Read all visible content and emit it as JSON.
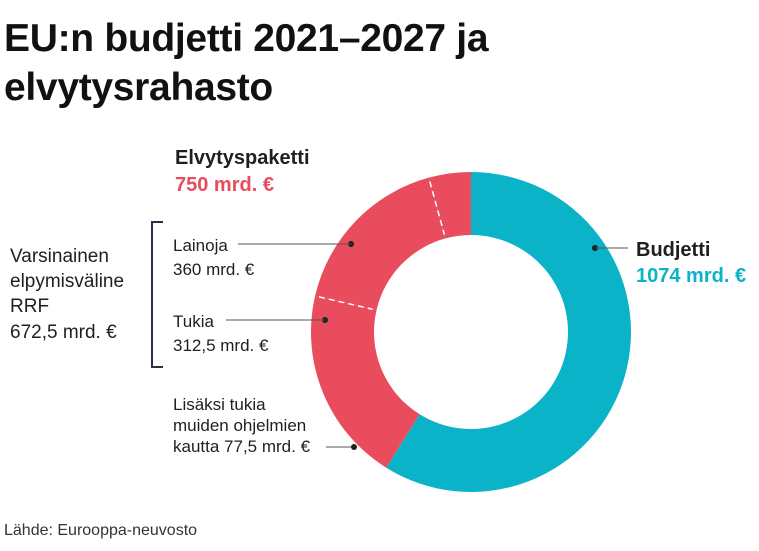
{
  "title": "EU:n budjetti 2021–2027 ja elvytysrahasto",
  "source": "Lähde: Eurooppa-neuvosto",
  "colors": {
    "budget": "#0ab3c8",
    "recovery": "#e84c5d",
    "text": "#1f1f1f",
    "bracket": "#2a3045"
  },
  "chart_data": {
    "type": "pie",
    "subtype": "donut",
    "unit": "mrd. €",
    "slices": [
      {
        "label": "Budjetti",
        "value": 1074,
        "value_label": "1074 mrd. €",
        "color": "#0ab3c8"
      },
      {
        "label": "Lainoja",
        "value": 360,
        "value_label": "360 mrd. €",
        "color": "#e84c5d"
      },
      {
        "label": "Tukia",
        "value": 312.5,
        "value_label": "312,5 mrd. €",
        "color": "#e84c5d"
      },
      {
        "label": "Lisäksi tukia muiden ohjelmien kautta",
        "value": 77.5,
        "value_label": "Lisäksi tukia muiden ohjelmien kautta 77,5 mrd. €",
        "color": "#e84c5d"
      }
    ],
    "groups": [
      {
        "label": "Elvytyspaketti",
        "value_label": "750 mrd. €",
        "value": 750,
        "color": "#e84c5d"
      },
      {
        "label": "Varsinainen elpymisväline RRF",
        "value_label": "672,5 mrd. €",
        "value": 672.5
      }
    ]
  }
}
